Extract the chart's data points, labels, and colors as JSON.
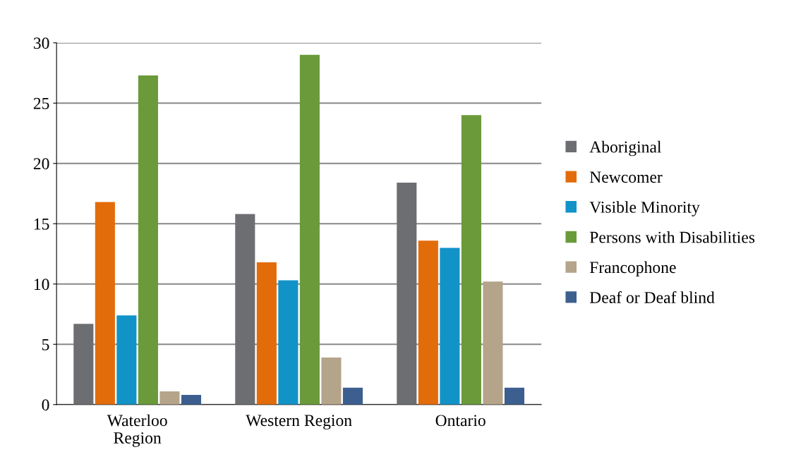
{
  "chart_data": {
    "type": "bar",
    "categories": [
      "Waterloo\nRegion",
      "Western Region",
      "Ontario"
    ],
    "series": [
      {
        "name": "Aboriginal",
        "color": "#6d6e71",
        "values": [
          6.7,
          15.8,
          18.4
        ]
      },
      {
        "name": "Newcomer",
        "color": "#e36c0a",
        "values": [
          16.8,
          11.8,
          13.6
        ]
      },
      {
        "name": "Visible Minority",
        "color": "#1193c8",
        "values": [
          7.4,
          10.3,
          13.0
        ]
      },
      {
        "name": "Persons with Disabilities",
        "color": "#6a9a3a",
        "values": [
          27.3,
          29.0,
          24.0
        ]
      },
      {
        "name": "Francophone",
        "color": "#b4a48a",
        "values": [
          1.1,
          3.9,
          10.2
        ]
      },
      {
        "name": "Deaf or Deaf blind",
        "color": "#3d5f8f",
        "values": [
          0.8,
          1.4,
          1.4
        ]
      }
    ],
    "ylim": [
      0,
      30
    ],
    "yticks": [
      0,
      5,
      10,
      15,
      20,
      25,
      30
    ],
    "grid": "y",
    "legend": "right"
  }
}
